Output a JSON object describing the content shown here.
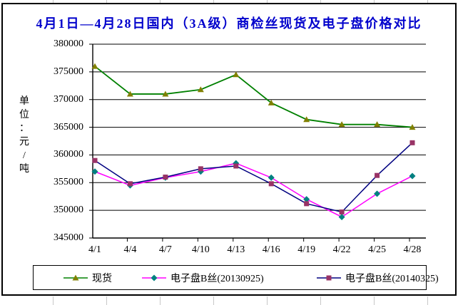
{
  "chart_data": {
    "type": "line",
    "title": "4月1日—4月28日国内（3A级）商检丝现货及电子盘价格对比",
    "y_axis_title": "单位：元/吨",
    "categories": [
      "4/1",
      "4/4",
      "4/7",
      "4/10",
      "4/13",
      "4/16",
      "4/19",
      "4/22",
      "4/25",
      "4/28"
    ],
    "series": [
      {
        "key": "spot",
        "name": "现货",
        "marker": "triangle",
        "line_color": "#008000",
        "marker_color": "#808000",
        "values": [
          376000,
          371000,
          371000,
          371800,
          374500,
          369400,
          366400,
          365500,
          365500,
          365000
        ]
      },
      {
        "key": "b20130925",
        "name": "电子盘B丝(20130925)",
        "marker": "diamond",
        "line_color": "#ff00ff",
        "marker_color": "#008080",
        "values": [
          357000,
          354500,
          355900,
          357000,
          358500,
          355900,
          352000,
          348800,
          353000,
          356200
        ]
      },
      {
        "key": "b20140325",
        "name": "电子盘B丝(20140325)",
        "marker": "square",
        "line_color": "#000080",
        "marker_color": "#993366",
        "values": [
          359000,
          354800,
          356000,
          357500,
          358000,
          354800,
          351200,
          349700,
          356300,
          362200
        ]
      }
    ],
    "ylim": [
      345000,
      380000
    ],
    "y_ticks": [
      380000,
      375000,
      370000,
      365000,
      360000,
      355000,
      350000,
      345000
    ],
    "grid": true,
    "legend_position": "bottom",
    "colors": {
      "title": "#0000cc",
      "axis": "#000000",
      "background": "#ffffff"
    }
  }
}
